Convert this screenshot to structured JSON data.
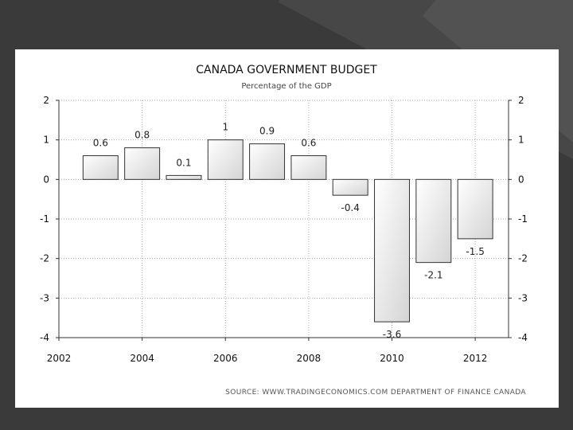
{
  "chart_data": {
    "type": "bar",
    "title": "CANADA GOVERNMENT BUDGET",
    "subtitle": "Percentage of the GDP",
    "x": [
      2003,
      2004,
      2005,
      2006,
      2007,
      2008,
      2009,
      2010,
      2011,
      2012
    ],
    "values": [
      0.6,
      0.8,
      0.1,
      1,
      0.9,
      0.6,
      -0.4,
      -3.6,
      -2.1,
      -1.5
    ],
    "value_labels": [
      "0.6",
      "0.8",
      "0.1",
      "1",
      "0.9",
      "0.6",
      "-0.4",
      "-3.6",
      "-2.1",
      "-1.5"
    ],
    "xlim": [
      2002,
      2012.8
    ],
    "xticks": [
      "2002",
      "2004",
      "2006",
      "2008",
      "2010",
      "2012"
    ],
    "ylim": [
      -4,
      2
    ],
    "yticks": [
      "2",
      "1",
      "0",
      "-1",
      "-2",
      "-3",
      "-4"
    ],
    "yaxis_both_sides": true,
    "grid": true,
    "bar_color": "#f2f2f2",
    "bar_edge_color": "#333333",
    "source": "SOURCE: WWW.TRADINGECONOMICS.COM   DEPARTMENT OF FINANCE CANADA"
  }
}
